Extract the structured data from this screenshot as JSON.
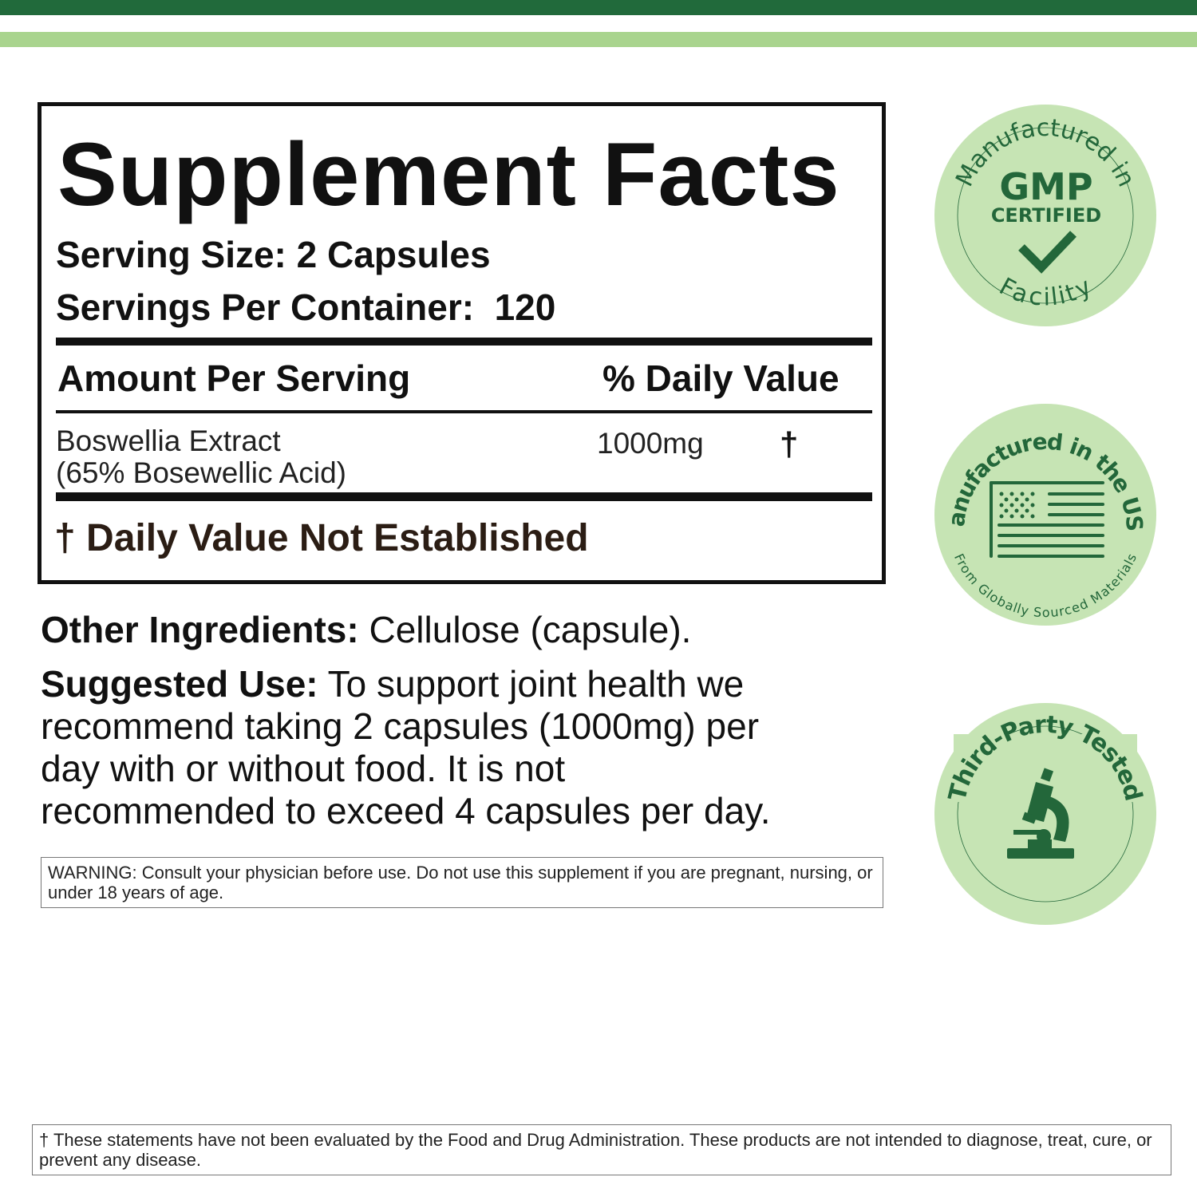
{
  "colors": {
    "dark_green": "#216a3b",
    "light_green": "#a9d48e",
    "badge_bg": "#c6e4b4",
    "badge_fg": "#23673a"
  },
  "facts": {
    "title": "Supplement Facts",
    "serving_size": "Serving Size: 2 Capsules",
    "servings_per_container": "Servings Per Container:  120",
    "amount_header": "Amount Per Serving",
    "dv_header": "% Daily Value",
    "ingredient_line1": "Boswellia Extract",
    "ingredient_line2": "(65% Bosewellic Acid)",
    "ingredient_amount": "1000mg",
    "ingredient_dv": "†",
    "footnote": "† Daily Value Not Established"
  },
  "other_ingredients": {
    "label": "Other Ingredients:",
    "text": " Cellulose (capsule)."
  },
  "suggested_use": {
    "label": "Suggested Use:",
    "text": " To support joint health we recommend taking 2 capsules (1000mg) per day with or without food. It is not recommended to exceed 4 capsules per day."
  },
  "warning": "WARNING: Consult your physician before use. Do not use this supplement if you are pregnant, nursing, or under 18 years of age.",
  "disclaimer": "† These statements have not been evaluated by the Food and Drug Administration. These products are not intended to diagnose, treat, cure, or prevent any disease.",
  "badges": [
    {
      "top_text": "Manufactured in",
      "main": "GMP",
      "sub": "CERTIFIED",
      "bottom_text": "Facility",
      "icon": "checkmark-icon"
    },
    {
      "top_text": "Manufactured in the USA",
      "bottom_text": "From Globally Sourced Materials",
      "icon": "us-flag-icon"
    },
    {
      "top_text": "Third-Party Tested",
      "icon": "microscope-icon"
    }
  ]
}
